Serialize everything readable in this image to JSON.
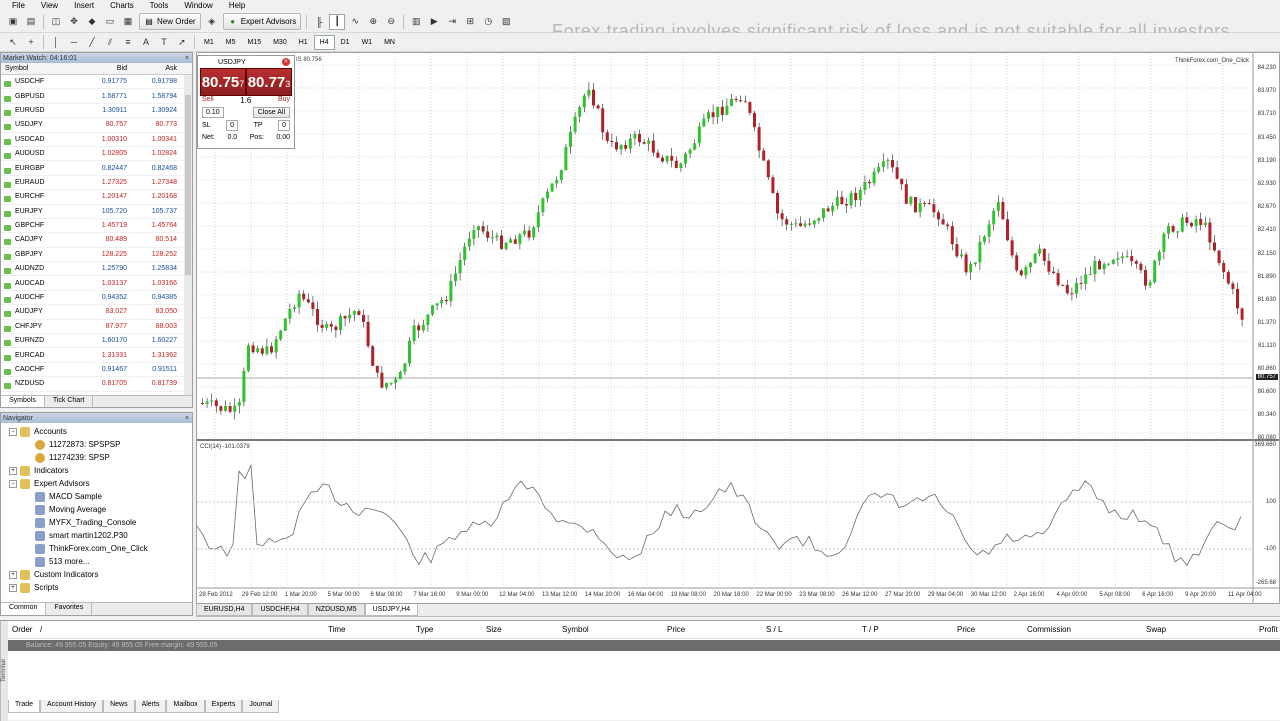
{
  "menu": [
    "File",
    "View",
    "Insert",
    "Charts",
    "Tools",
    "Window",
    "Help"
  ],
  "toolbar": {
    "new_order": "New Order",
    "expert_advisors": "Expert Advisors",
    "timeframes": [
      "M1",
      "M5",
      "M15",
      "M30",
      "H1",
      "H4",
      "D1",
      "W1",
      "MN"
    ],
    "active_timeframe": "H4"
  },
  "disclaimer": "Forex trading involves significant risk of loss and is not suitable for all investors.",
  "market_watch": {
    "title": "Market Watch: 04:16:01",
    "col_symbol": "Symbol",
    "col_bid": "Bid",
    "col_ask": "Ask",
    "rows": [
      {
        "symbol": "USDCHF",
        "bid": "0.91775",
        "ask": "0.91798",
        "dir": "up"
      },
      {
        "symbol": "GBPUSD",
        "bid": "1.58771",
        "ask": "1.58794",
        "dir": "up"
      },
      {
        "symbol": "EURUSD",
        "bid": "1.30911",
        "ask": "1.30924",
        "dir": "up"
      },
      {
        "symbol": "USDJPY",
        "bid": "80.757",
        "ask": "80.773",
        "dir": "down"
      },
      {
        "symbol": "USDCAD",
        "bid": "1.00310",
        "ask": "1.00341",
        "dir": "down"
      },
      {
        "symbol": "AUDUSD",
        "bid": "1.02805",
        "ask": "1.02824",
        "dir": "down"
      },
      {
        "symbol": "EURGBP",
        "bid": "0.82447",
        "ask": "0.82468",
        "dir": "up"
      },
      {
        "symbol": "EURAUD",
        "bid": "1.27325",
        "ask": "1.27348",
        "dir": "down"
      },
      {
        "symbol": "EURCHF",
        "bid": "1.20147",
        "ask": "1.20168",
        "dir": "down"
      },
      {
        "symbol": "EURJPY",
        "bid": "105.720",
        "ask": "105.737",
        "dir": "up"
      },
      {
        "symbol": "GBPCHF",
        "bid": "1.45719",
        "ask": "1.45764",
        "dir": "down"
      },
      {
        "symbol": "CADJPY",
        "bid": "80.489",
        "ask": "80.514",
        "dir": "down"
      },
      {
        "symbol": "GBPJPY",
        "bid": "128.225",
        "ask": "128.252",
        "dir": "down"
      },
      {
        "symbol": "AUDNZD",
        "bid": "1.25790",
        "ask": "1.25834",
        "dir": "up"
      },
      {
        "symbol": "AUDCAD",
        "bid": "1.03137",
        "ask": "1.03166",
        "dir": "down"
      },
      {
        "symbol": "AUDCHF",
        "bid": "0.94352",
        "ask": "0.94385",
        "dir": "up"
      },
      {
        "symbol": "AUDJPY",
        "bid": "83.027",
        "ask": "83.050",
        "dir": "down"
      },
      {
        "symbol": "CHFJPY",
        "bid": "87.977",
        "ask": "88.003",
        "dir": "down"
      },
      {
        "symbol": "EURNZD",
        "bid": "1.60170",
        "ask": "1.60227",
        "dir": "up"
      },
      {
        "symbol": "EURCAD",
        "bid": "1.31331",
        "ask": "1.31362",
        "dir": "down"
      },
      {
        "symbol": "CADCHF",
        "bid": "0.91467",
        "ask": "0.91511",
        "dir": "up"
      },
      {
        "symbol": "NZDUSD",
        "bid": "0.81705",
        "ask": "0.81739",
        "dir": "down"
      }
    ],
    "tabs": [
      "Symbols",
      "Tick Chart"
    ]
  },
  "navigator": {
    "title": "Navigator",
    "items": [
      {
        "label": "Accounts",
        "level": 0,
        "exp": "−",
        "icon": "folder"
      },
      {
        "label": "11272873: SPSPSP",
        "level": 1,
        "exp": "",
        "icon": "user"
      },
      {
        "label": "11274239: SPSP",
        "level": 1,
        "exp": "",
        "icon": "user"
      },
      {
        "label": "Indicators",
        "level": 0,
        "exp": "+",
        "icon": "folder"
      },
      {
        "label": "Expert Advisors",
        "level": 0,
        "exp": "−",
        "icon": "folder"
      },
      {
        "label": "MACD Sample",
        "level": 1,
        "exp": "",
        "icon": "ea"
      },
      {
        "label": "Moving Average",
        "level": 1,
        "exp": "",
        "icon": "ea"
      },
      {
        "label": "MYFX_Trading_Console",
        "level": 1,
        "exp": "",
        "icon": "ea"
      },
      {
        "label": "smart martin1202.P30",
        "level": 1,
        "exp": "",
        "icon": "ea"
      },
      {
        "label": "ThinkForex.com_One_Click",
        "level": 1,
        "exp": "",
        "icon": "ea"
      },
      {
        "label": "513 more...",
        "level": 1,
        "exp": "",
        "icon": "ea"
      },
      {
        "label": "Custom Indicators",
        "level": 0,
        "exp": "+",
        "icon": "folder"
      },
      {
        "label": "Scripts",
        "level": 0,
        "exp": "+",
        "icon": "folder"
      }
    ],
    "tabs": [
      "Common",
      "Favorites"
    ]
  },
  "one_click": {
    "symbol": "USDJPY",
    "sell_big": "80.75",
    "sell_small": "7",
    "buy_big": "80.77",
    "buy_small": "3",
    "sell_label": "Sell",
    "buy_label": "Buy",
    "spread": "1.6",
    "lots": "0.10",
    "close_all": "Close All",
    "sl_label": "SL",
    "sl_value": "0",
    "tp_label": "TP",
    "tp_value": "0",
    "net_label": "Net:",
    "net_value": "0.0",
    "pos_label": "Pos:",
    "pos_value": "0.00"
  },
  "chart": {
    "symbol_header": "IS 80.756",
    "brand": "ThinkForex.com_One_Click",
    "cci_label": "CCI(14) -101.0379",
    "price_ticks": [
      "84.230",
      "83.970",
      "83.710",
      "83.450",
      "83.190",
      "82.930",
      "82.670",
      "82.410",
      "82.150",
      "81.890",
      "81.630",
      "81.370",
      "81.110",
      "80.860",
      "80.600",
      "80.340",
      "80.080"
    ],
    "current_price": "80.757",
    "cci_ticks": [
      "369.660",
      "100",
      "-100",
      "-265.68"
    ],
    "date_ticks": [
      "28 Feb 2012",
      "29 Feb 12:00",
      "1 Mar 20:00",
      "5 Mar 00:00",
      "6 Mar 08:00",
      "7 Mar 16:00",
      "9 Mar 00:00",
      "12 Mar 04:00",
      "13 Mar 12:00",
      "14 Mar 20:00",
      "16 Mar 04:00",
      "19 Mar 08:00",
      "20 Mar 16:00",
      "22 Mar 00:00",
      "23 Mar 08:00",
      "26 Mar 12:00",
      "27 Mar 20:00",
      "29 Mar 04:00",
      "30 Mar 12:00",
      "2 Apr 16:00",
      "4 Apr 00:00",
      "5 Apr 08:00",
      "6 Apr 16:00",
      "9 Apr 20:00",
      "11 Apr 04:00"
    ]
  },
  "chart_tabs": [
    "EURUSD,H4",
    "USDCHF,H4",
    "NZDUSD,M5",
    "USDJPY,H4"
  ],
  "active_chart_tab": "USDJPY,H4",
  "terminal": {
    "headers": [
      "Order",
      "/",
      "Time",
      "Type",
      "Size",
      "Symbol",
      "Price",
      "S / L",
      "T / P",
      "Price",
      "Commission",
      "Swap",
      "Profit"
    ],
    "balance": "Balance: 49 955.05  Equity: 49 955.05  Free margin: 49 955.05",
    "tabs": [
      "Trade",
      "Account History",
      "News",
      "Alerts",
      "Mailbox",
      "Experts",
      "Journal"
    ],
    "side_label": "Terminal"
  }
}
